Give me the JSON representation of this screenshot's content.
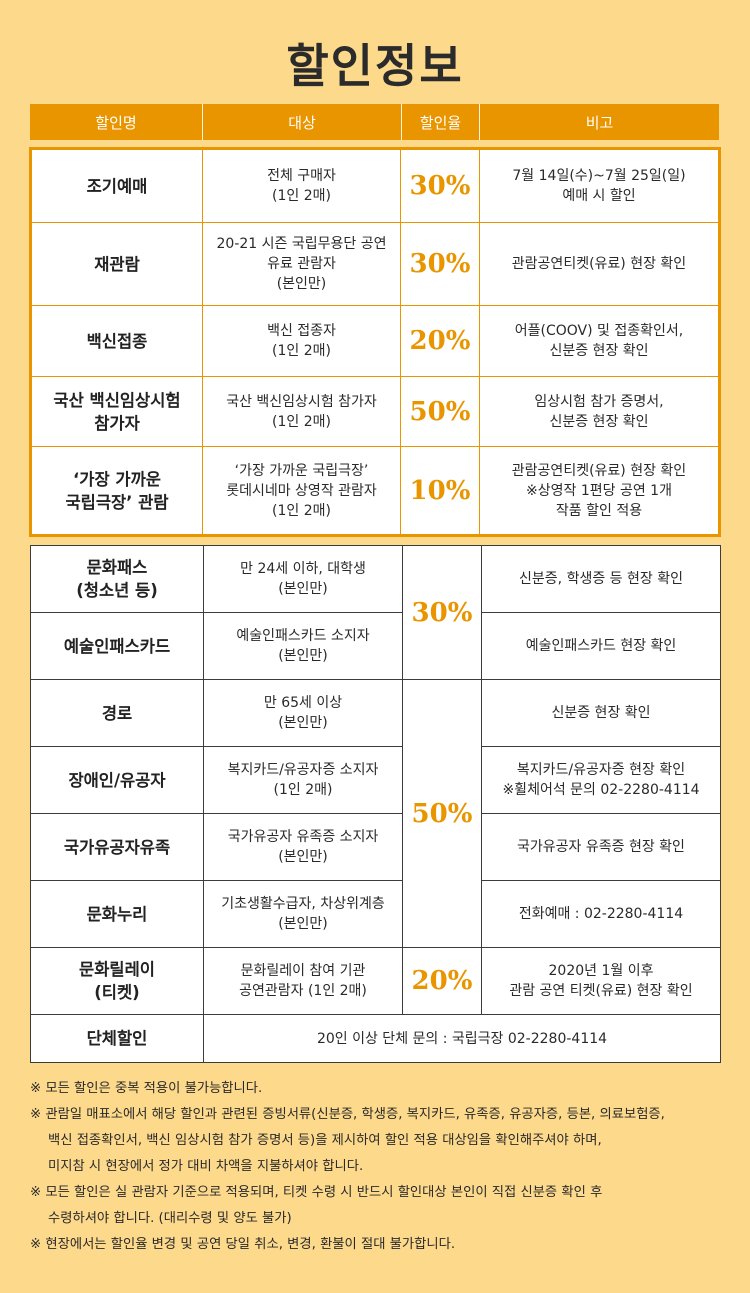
{
  "title": "할인정보",
  "headers": [
    "할인명",
    "대상",
    "할인율",
    "비고"
  ],
  "section1": [
    {
      "name": "조기예매",
      "target": "전체 구매자\n(1인 2매)",
      "rate": "30%",
      "note": "7월 14일(수)~7월 25일(일)\n예매 시 할인"
    },
    {
      "name": "재관람",
      "target": "20-21 시즌 국립무용단 공연\n유료 관람자\n(본인만)",
      "rate": "30%",
      "note": "관람공연티켓(유료) 현장 확인"
    },
    {
      "name": "백신접종",
      "target": "백신 접종자\n(1인 2매)",
      "rate": "20%",
      "note": "어플(COOV) 및 접종확인서,\n신분증 현장 확인"
    },
    {
      "name": "국산 백신임상시험\n참가자",
      "target": "국산 백신임상시험 참가자\n(1인 2매)",
      "rate": "50%",
      "note": "임상시험 참가 증명서,\n신분증 현장 확인"
    },
    {
      "name": "‘가장 가까운\n국립극장’ 관람",
      "target": "‘가장 가까운 국립극장’\n롯데시네마 상영작 관람자\n(1인 2매)",
      "rate": "10%",
      "note": "관람공연티켓(유료) 현장 확인\n※상영작 1편당 공연 1개\n작품 할인 적용"
    }
  ],
  "section2": [
    {
      "name": "문화패스\n(청소년 등)",
      "target": "만 24세 이하, 대학생\n(본인만)",
      "note": "신분증, 학생증 등 현장 확인"
    },
    {
      "name": "예술인패스카드",
      "target": "예술인패스카드 소지자\n(본인만)",
      "note": "예술인패스카드 현장 확인"
    },
    {
      "name": "경로",
      "target": "만 65세 이상\n(본인만)",
      "note": "신분증 현장 확인"
    },
    {
      "name": "장애인/유공자",
      "target": "복지카드/유공자증 소지자\n(1인 2매)",
      "note": "복지카드/유공자증 현장 확인\n※휠체어석 문의 02-2280-4114"
    },
    {
      "name": "국가유공자유족",
      "target": "국가유공자 유족증 소지자\n(본인만)",
      "note": "국가유공자 유족증 현장 확인"
    },
    {
      "name": "문화누리",
      "target": "기초생활수급자, 차상위계층\n(본인만)",
      "note": "전화예매 : 02-2280-4114"
    },
    {
      "name": "문화릴레이\n(티켓)",
      "target": "문화릴레이 참여 기관\n공연관람자 (1인 2매)",
      "note": "2020년 1월 이후\n관람 공연 티켓(유료) 현장 확인"
    }
  ],
  "section2_rates": {
    "group_a": "30%",
    "group_b": "50%",
    "group_c": "20%"
  },
  "group_discount": {
    "name": "단체할인",
    "desc": "20인 이상 단체 문의 : 국립극장 02-2280-4114"
  },
  "notes": [
    "※ 모든 할인은 중복 적용이 불가능합니다.",
    "※ 관람일 매표소에서 해당 할인과 관련된 증빙서류(신분증, 학생증, 복지카드, 유족증, 유공자증, 등본, 의료보험증,\n백신 접종확인서, 백신 임상시험 참가 증명서 등)을 제시하여 할인 적용 대상임을 확인해주셔야 하며,\n미지참 시 현장에서 정가 대비 차액을 지불하셔야 합니다.",
    "※ 모든 할인은 실 관람자 기준으로 적용되며, 티켓 수령 시 반드시 할인대상 본인이 직접 신분증 확인 후\n수령하셔야 합니다. (대리수령 및 양도 불가)",
    "※ 현장에서는 할인율 변경 및 공연 당일 취소, 변경, 환불이 절대 불가합니다."
  ]
}
